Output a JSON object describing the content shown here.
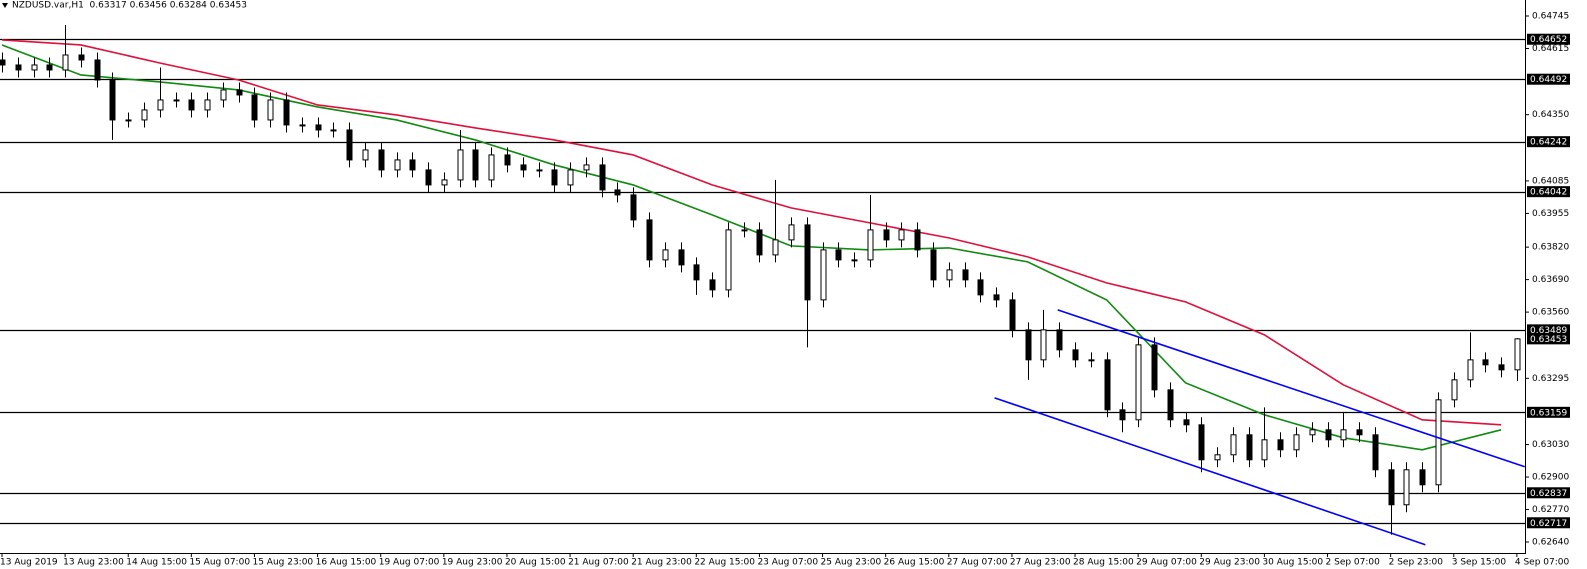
{
  "chart_data": {
    "type": "candlestick",
    "title": "NZDUSD.var,H1  0.63317 0.63456 0.63284 0.63453",
    "categories": [
      "13 Aug 2019",
      null,
      null,
      null,
      "13 Aug 23:00",
      null,
      null,
      null,
      "14 Aug 15:00",
      null,
      null,
      null,
      "15 Aug 07:00",
      null,
      null,
      null,
      "15 Aug 23:00",
      null,
      null,
      null,
      "16 Aug 15:00",
      null,
      null,
      null,
      "19 Aug 07:00",
      null,
      null,
      null,
      "19 Aug 23:00",
      null,
      null,
      null,
      "20 Aug 15:00",
      null,
      null,
      null,
      "21 Aug 07:00",
      null,
      null,
      null,
      "21 Aug 23:00",
      null,
      null,
      null,
      "22 Aug 15:00",
      null,
      null,
      null,
      "23 Aug 07:00",
      null,
      null,
      null,
      "25 Aug 23:00",
      null,
      null,
      null,
      "26 Aug 15:00",
      null,
      null,
      null,
      "27 Aug 07:00",
      null,
      null,
      null,
      "27 Aug 23:00",
      null,
      null,
      null,
      "28 Aug 15:00",
      null,
      null,
      null,
      "29 Aug 07:00",
      null,
      null,
      null,
      "29 Aug 23:00",
      null,
      null,
      null,
      "30 Aug 15:00",
      null,
      null,
      null,
      "2 Sep 07:00",
      null,
      null,
      null,
      "2 Sep 23:00",
      null,
      null,
      null,
      "3 Sep 15:00",
      null,
      null,
      null,
      "4 Sep 07:00"
    ],
    "open": [
      0.64569,
      0.64549,
      0.64529,
      0.64549,
      0.64529,
      0.64589,
      0.64569,
      0.64489,
      0.64329,
      0.64329,
      0.64369,
      0.64409,
      0.64409,
      0.64369,
      0.64409,
      0.64449,
      0.64429,
      0.64329,
      0.64409,
      0.64309,
      0.64309,
      0.64289,
      0.64289,
      0.64169,
      0.64209,
      0.64129,
      0.64169,
      0.64129,
      0.64069,
      0.64089,
      0.64209,
      0.64089,
      0.64189,
      0.64149,
      0.64129,
      0.64129,
      0.64069,
      0.64129,
      0.64149,
      0.64049,
      0.64029,
      0.63929,
      0.63769,
      0.63809,
      0.63749,
      0.63689,
      0.63649,
      0.63889,
      0.63889,
      0.63789,
      0.63849,
      0.63909,
      0.63609,
      0.63809,
      0.63769,
      0.63769,
      0.63889,
      0.63849,
      0.63889,
      0.63809,
      0.63689,
      0.63729,
      0.63689,
      0.63629,
      0.63609,
      0.63489,
      0.63369,
      0.63489,
      0.63409,
      0.63369,
      0.63369,
      0.63169,
      0.63129,
      0.63429,
      0.63249,
      0.63129,
      0.63109,
      0.62969,
      0.62989,
      0.63069,
      0.62969,
      0.63049,
      0.63009,
      0.63069,
      0.63089,
      0.63049,
      0.63089,
      0.63069,
      0.62929,
      0.62789,
      0.62929,
      0.62869,
      0.63209,
      0.63289,
      0.63369,
      0.63349,
      0.63329
    ],
    "high": [
      0.64599,
      0.64579,
      0.64579,
      0.64579,
      0.64709,
      0.64619,
      0.64599,
      0.64519,
      0.64359,
      0.64399,
      0.64539,
      0.64439,
      0.64439,
      0.64439,
      0.64479,
      0.64479,
      0.64459,
      0.64439,
      0.64439,
      0.64339,
      0.64339,
      0.64319,
      0.64319,
      0.64239,
      0.64239,
      0.64199,
      0.64199,
      0.64159,
      0.64119,
      0.64289,
      0.64239,
      0.64219,
      0.64219,
      0.64179,
      0.64159,
      0.64159,
      0.64159,
      0.64179,
      0.64179,
      0.64079,
      0.64059,
      0.63959,
      0.63839,
      0.63839,
      0.63779,
      0.63719,
      0.63919,
      0.63919,
      0.63919,
      0.64089,
      0.63939,
      0.63939,
      0.63839,
      0.63839,
      0.63799,
      0.64029,
      0.63919,
      0.63919,
      0.63919,
      0.63839,
      0.63759,
      0.63759,
      0.63719,
      0.63659,
      0.63639,
      0.63519,
      0.63569,
      0.63519,
      0.63439,
      0.63399,
      0.63399,
      0.63199,
      0.63459,
      0.63459,
      0.63279,
      0.63159,
      0.63139,
      0.63019,
      0.63099,
      0.63099,
      0.63179,
      0.63079,
      0.63099,
      0.63119,
      0.63119,
      0.63159,
      0.63119,
      0.63099,
      0.62959,
      0.62959,
      0.62959,
      0.63239,
      0.63319,
      0.63479,
      0.63399,
      0.63379,
      0.63456
    ],
    "low": [
      0.64519,
      0.64499,
      0.64499,
      0.64499,
      0.64499,
      0.64539,
      0.64459,
      0.64249,
      0.64299,
      0.64299,
      0.64339,
      0.64379,
      0.64339,
      0.64339,
      0.64379,
      0.64399,
      0.64299,
      0.64299,
      0.64279,
      0.64279,
      0.64259,
      0.64259,
      0.64139,
      0.64139,
      0.64099,
      0.64099,
      0.64099,
      0.64039,
      0.64039,
      0.64059,
      0.64059,
      0.64059,
      0.64119,
      0.64099,
      0.64099,
      0.64039,
      0.64039,
      0.64099,
      0.64019,
      0.63999,
      0.63899,
      0.63739,
      0.63739,
      0.63719,
      0.63629,
      0.63619,
      0.63619,
      0.63859,
      0.63759,
      0.63759,
      0.63819,
      0.63419,
      0.63579,
      0.63739,
      0.63739,
      0.63739,
      0.63819,
      0.63819,
      0.63779,
      0.63659,
      0.63659,
      0.63659,
      0.63599,
      0.63579,
      0.63459,
      0.63289,
      0.63339,
      0.63379,
      0.63339,
      0.63339,
      0.63139,
      0.63079,
      0.63099,
      0.63219,
      0.63099,
      0.63079,
      0.62919,
      0.62939,
      0.62959,
      0.62939,
      0.62939,
      0.62979,
      0.62979,
      0.63039,
      0.63019,
      0.63019,
      0.63039,
      0.62899,
      0.62669,
      0.62759,
      0.62839,
      0.62839,
      0.63179,
      0.63259,
      0.63319,
      0.63299,
      0.63284
    ],
    "close": [
      0.64549,
      0.64529,
      0.64549,
      0.64529,
      0.64589,
      0.64569,
      0.64489,
      0.64329,
      0.64329,
      0.64369,
      0.64409,
      0.64409,
      0.64369,
      0.64409,
      0.64449,
      0.64429,
      0.64329,
      0.64409,
      0.64309,
      0.64309,
      0.64289,
      0.64289,
      0.64169,
      0.64209,
      0.64129,
      0.64169,
      0.64129,
      0.64069,
      0.64089,
      0.64209,
      0.64089,
      0.64189,
      0.64149,
      0.64129,
      0.64129,
      0.64069,
      0.64129,
      0.64149,
      0.64049,
      0.64029,
      0.63929,
      0.63769,
      0.63809,
      0.63749,
      0.63689,
      0.63649,
      0.63889,
      0.63889,
      0.63789,
      0.63849,
      0.63909,
      0.63609,
      0.63809,
      0.63769,
      0.63769,
      0.63889,
      0.63849,
      0.63889,
      0.63809,
      0.63689,
      0.63729,
      0.63689,
      0.63629,
      0.63609,
      0.63489,
      0.63369,
      0.63489,
      0.63409,
      0.63369,
      0.63369,
      0.63169,
      0.63129,
      0.63429,
      0.63249,
      0.63129,
      0.63109,
      0.62969,
      0.62989,
      0.63069,
      0.62969,
      0.63049,
      0.63009,
      0.63069,
      0.63089,
      0.63049,
      0.63089,
      0.63069,
      0.62929,
      0.62789,
      0.62929,
      0.62869,
      0.63209,
      0.63289,
      0.63369,
      0.63349,
      0.63329,
      0.63453
    ],
    "lines": [
      {
        "color": "#e0103a",
        "x": [
          0,
          5,
          10,
          15,
          20,
          25,
          30,
          35,
          40,
          45,
          50,
          55,
          60,
          65,
          70,
          75,
          80,
          85,
          90,
          95
        ],
        "values": [
          0.64649,
          0.64629,
          0.64557,
          0.64489,
          0.64389,
          0.64349,
          0.64297,
          0.64249,
          0.64189,
          0.64069,
          0.63977,
          0.63917,
          0.63857,
          0.63781,
          0.63677,
          0.63601,
          0.63469,
          0.63269,
          0.63129,
          0.63109
        ]
      },
      {
        "color": "#108a10",
        "x": [
          0,
          5,
          10,
          15,
          20,
          25,
          30,
          35,
          40,
          45,
          50,
          55,
          60,
          65,
          70,
          75,
          80,
          85,
          90,
          95
        ],
        "values": [
          0.64629,
          0.64509,
          0.64481,
          0.64449,
          0.64381,
          0.64329,
          0.64249,
          0.64149,
          0.64069,
          0.63949,
          0.63825,
          0.63809,
          0.63817,
          0.63761,
          0.63609,
          0.63277,
          0.63149,
          0.63057,
          0.63009,
          0.63089
        ]
      }
    ],
    "trendlines": [
      {
        "color": "#0000ff",
        "x": [
          66.9,
          96.5
        ],
        "values": [
          0.63569,
          0.62941
        ]
      },
      {
        "color": "#0000ff",
        "x": [
          62.9,
          90.2
        ],
        "values": [
          0.63217,
          0.62629
        ]
      }
    ],
    "levels": [
      0.64652,
      0.64492,
      0.64242,
      0.64042,
      0.63489,
      0.63159,
      0.62837,
      0.62717
    ],
    "price": 0.63453,
    "ylim": [
      0.62596,
      0.64809
    ],
    "yticks": [
      0.64745,
      0.64615,
      {
        "value": 0.6435,
        "label": "0.64350"
      },
      0.64085,
      0.63955,
      {
        "value": 0.6382,
        "label": "0.63820"
      },
      {
        "value": 0.6369,
        "label": "0.63690"
      },
      {
        "value": 0.6356,
        "label": "0.63560"
      },
      0.63295,
      {
        "value": 0.6303,
        "label": "0.63030"
      },
      {
        "value": 0.629,
        "label": "0.62900"
      },
      {
        "value": 0.6277,
        "label": "0.62770"
      },
      {
        "value": 0.6264,
        "label": "0.62640"
      }
    ]
  }
}
